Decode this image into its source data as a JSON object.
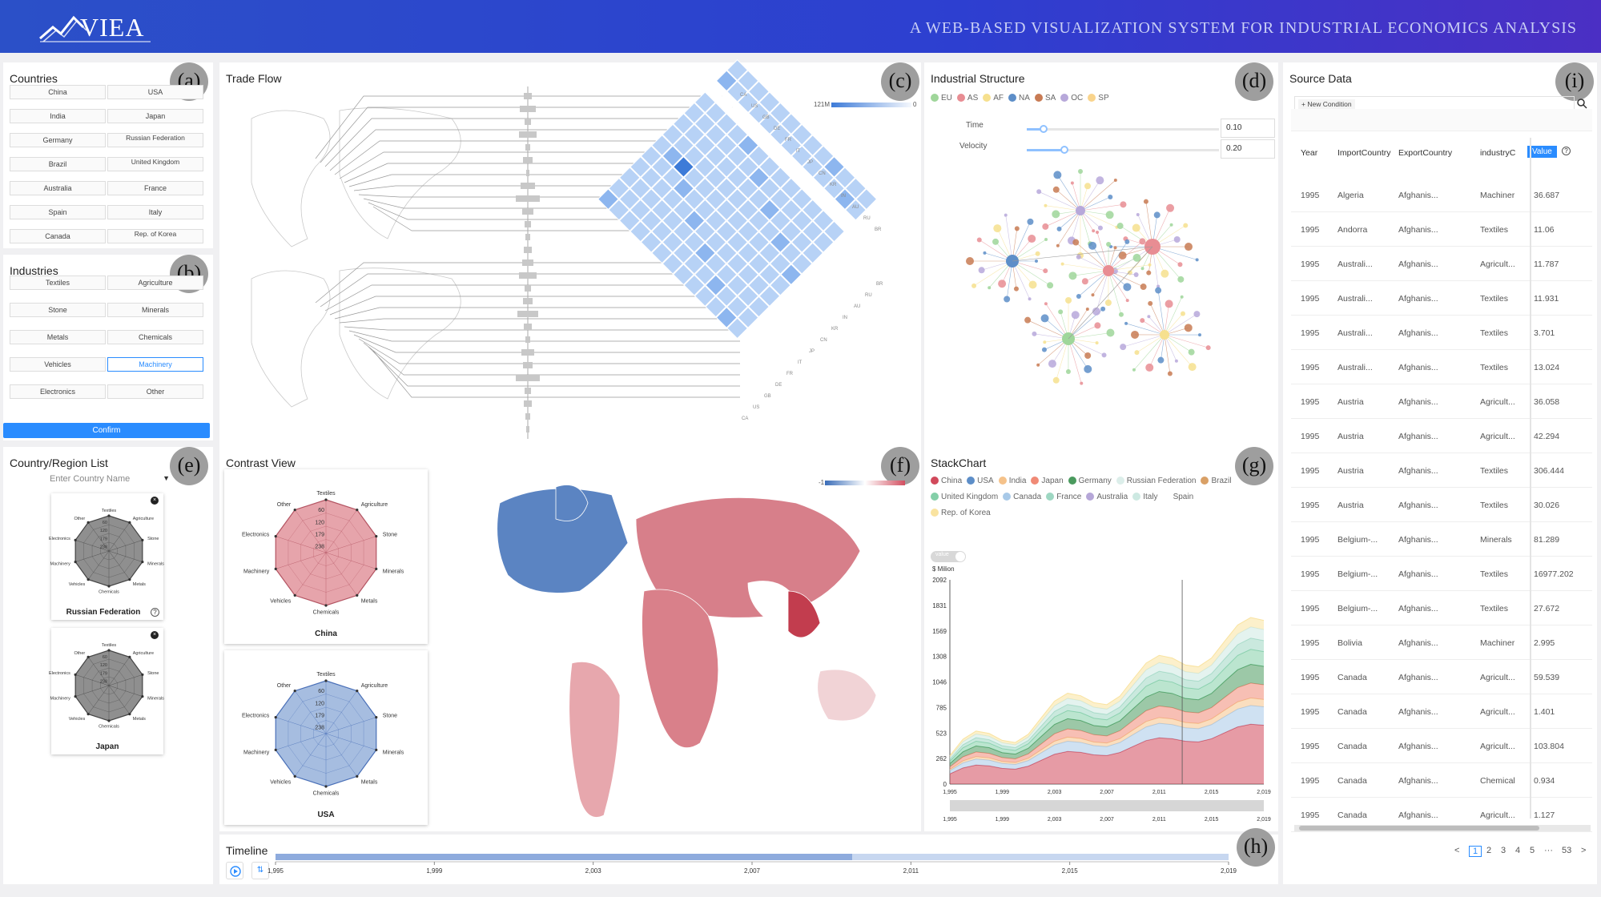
{
  "header": {
    "logo_text": "VIEA",
    "title": "A WEB-BASED VISUALIZATION SYSTEM FOR INDUSTRIAL ECONOMICS ANALYSIS"
  },
  "panels": {
    "countries": {
      "title": "Countries",
      "badge": "(a)",
      "items": [
        "China",
        "USA",
        "India",
        "Japan",
        "Germany",
        "Russian Federation",
        "Brazil",
        "United Kingdom",
        "Australia",
        "France",
        "Spain",
        "Italy",
        "Canada",
        "Rep. of Korea"
      ]
    },
    "industries": {
      "title": "Industries",
      "badge": "(b)",
      "items": [
        "Textiles",
        "Agriculture",
        "Stone",
        "Minerals",
        "Metals",
        "Chemicals",
        "Vehicles",
        "Machinery",
        "Electronics",
        "Other"
      ],
      "selected": "Machinery",
      "confirm": "Confirm"
    },
    "list": {
      "title": "Country/Region List",
      "badge": "(e)",
      "placeholder": "Enter Country Name",
      "cards": [
        "Russian Federation",
        "Japan"
      ]
    },
    "trade": {
      "title": "Trade Flow",
      "badge": "(c)",
      "legend_max": "121M",
      "legend_min": "0",
      "top_labels": [
        "CA",
        "US",
        "GB",
        "DE",
        "FR",
        "IT",
        "JP",
        "CN",
        "KR",
        "IN",
        "AU",
        "RU",
        "BR"
      ],
      "bottom_labels": [
        "BR",
        "RU",
        "AU",
        "IN",
        "KR",
        "CN",
        "JP",
        "IT",
        "FR",
        "DE",
        "GB",
        "US",
        "CA"
      ]
    },
    "industrial": {
      "title": "Industrial Structure",
      "badge": "(d)",
      "legend": [
        {
          "label": "EU",
          "color": "#9fd69a"
        },
        {
          "label": "AS",
          "color": "#e88d93"
        },
        {
          "label": "AF",
          "color": "#f6e08e"
        },
        {
          "label": "NA",
          "color": "#5d8ec8"
        },
        {
          "label": "SA",
          "color": "#c87b54"
        },
        {
          "label": "OC",
          "color": "#b7a8da"
        },
        {
          "label": "SP",
          "color": "#f9d48c"
        }
      ],
      "time_label": "Time",
      "time_value": "0.10",
      "velocity_label": "Velocity",
      "velocity_value": "0.20"
    },
    "contrast": {
      "title": "Contrast View",
      "badge": "(f)",
      "legend_left": "-1",
      "cards": [
        "China",
        "USA"
      ]
    },
    "stack": {
      "title": "StackChart",
      "badge": "(g)",
      "toggle_label": "value",
      "unit": "$ Milion",
      "legend": [
        {
          "label": "China",
          "color": "#d1495b"
        },
        {
          "label": "USA",
          "color": "#5d8ec8"
        },
        {
          "label": "India",
          "color": "#f5c28a"
        },
        {
          "label": "Japan",
          "color": "#f08a76"
        },
        {
          "label": "Germany",
          "color": "#4a9a5e"
        },
        {
          "label": "Russian Federation",
          "color": "#dceeea"
        },
        {
          "label": "Brazil",
          "color": "#d9a066"
        },
        {
          "label": "United Kingdom",
          "color": "#84cfa8"
        },
        {
          "label": "Canada",
          "color": "#a8c9e8"
        },
        {
          "label": "France",
          "color": "#9ed7c2"
        },
        {
          "label": "Australia",
          "color": "#b6a7d8"
        },
        {
          "label": "Italy",
          "color": "#cde9e2"
        },
        {
          "label": "Spain",
          "color": "#ffffff"
        },
        {
          "label": "Rep. of Korea",
          "color": "#f9e3a0"
        }
      ],
      "yticks": [
        "2092",
        "1831",
        "1569",
        "1308",
        "1046",
        "785",
        "523",
        "262",
        "0"
      ],
      "xticks": [
        "1,995",
        "1,999",
        "2,003",
        "2,007",
        "2,011",
        "2,015",
        "2,019"
      ]
    },
    "timeline": {
      "title": "Timeline",
      "badge": "(h)",
      "ticks": [
        "1,995",
        "1,999",
        "2,003",
        "2,007",
        "2,011",
        "2,015",
        "2,019"
      ]
    },
    "source": {
      "title": "Source Data",
      "badge": "(i)",
      "new_condition": "+ New Condition",
      "columns": [
        "Year",
        "ImportCountry",
        "ExportCountry",
        "industryC",
        "Value"
      ],
      "rows": [
        [
          "1995",
          "Algeria",
          "Afghanis...",
          "Machiner",
          "36.687"
        ],
        [
          "1995",
          "Andorra",
          "Afghanis...",
          "Textiles",
          "11.06"
        ],
        [
          "1995",
          "Australi...",
          "Afghanis...",
          "Agricult...",
          "11.787"
        ],
        [
          "1995",
          "Australi...",
          "Afghanis...",
          "Textiles",
          "11.931"
        ],
        [
          "1995",
          "Australi...",
          "Afghanis...",
          "Textiles",
          "3.701"
        ],
        [
          "1995",
          "Australi...",
          "Afghanis...",
          "Textiles",
          "13.024"
        ],
        [
          "1995",
          "Austria",
          "Afghanis...",
          "Agricult...",
          "36.058"
        ],
        [
          "1995",
          "Austria",
          "Afghanis...",
          "Agricult...",
          "42.294"
        ],
        [
          "1995",
          "Austria",
          "Afghanis...",
          "Textiles",
          "306.444"
        ],
        [
          "1995",
          "Austria",
          "Afghanis...",
          "Textiles",
          "30.026"
        ],
        [
          "1995",
          "Belgium-...",
          "Afghanis...",
          "Minerals",
          "81.289"
        ],
        [
          "1995",
          "Belgium-...",
          "Afghanis...",
          "Textiles",
          "16977.202"
        ],
        [
          "1995",
          "Belgium-...",
          "Afghanis...",
          "Textiles",
          "27.672"
        ],
        [
          "1995",
          "Bolivia",
          "Afghanis...",
          "Machiner",
          "2.995"
        ],
        [
          "1995",
          "Canada",
          "Afghanis...",
          "Agricult...",
          "59.539"
        ],
        [
          "1995",
          "Canada",
          "Afghanis...",
          "Agricult...",
          "1.401"
        ],
        [
          "1995",
          "Canada",
          "Afghanis...",
          "Agricult...",
          "103.804"
        ],
        [
          "1995",
          "Canada",
          "Afghanis...",
          "Chemical",
          "0.934"
        ],
        [
          "1995",
          "Canada",
          "Afghanis...",
          "Agricult...",
          "1.127"
        ]
      ],
      "pages": [
        "<",
        "1",
        "2",
        "3",
        "4",
        "5",
        "···",
        "53",
        ">"
      ]
    }
  },
  "radar": {
    "axes": [
      "Textiles",
      "Agriculture",
      "Stone",
      "Minerals",
      "Metals",
      "Chemicals",
      "Vehicles",
      "Machinery",
      "Electronics",
      "Other"
    ],
    "rings": [
      "60",
      "120",
      "179",
      "238"
    ]
  }
}
